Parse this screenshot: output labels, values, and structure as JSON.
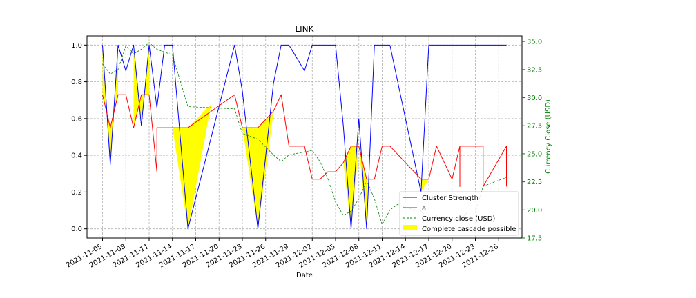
{
  "chart_data": {
    "type": "line",
    "title": "LINK",
    "xlabel": "Date",
    "ylabel": "",
    "y2label": "Currency Close (USD)",
    "ylim": [
      -0.05,
      1.05
    ],
    "y2lim": [
      17.5,
      35.5
    ],
    "xlim": [
      "2021-11-03",
      "2021-12-29"
    ],
    "x_ticks": [
      "2021-11-05",
      "2021-11-08",
      "2021-11-11",
      "2021-11-14",
      "2021-11-17",
      "2021-11-20",
      "2021-11-23",
      "2021-11-26",
      "2021-11-29",
      "2021-12-02",
      "2021-12-05",
      "2021-12-08",
      "2021-12-11",
      "2021-12-14",
      "2021-12-17",
      "2021-12-20",
      "2021-12-23",
      "2021-12-26"
    ],
    "y_ticks": [
      "0.0",
      "0.2",
      "0.4",
      "0.6",
      "0.8",
      "1.0"
    ],
    "y2_ticks": [
      "17.5",
      "20.0",
      "22.5",
      "25.0",
      "27.5",
      "30.0",
      "32.5",
      "35.0"
    ],
    "grid": true,
    "legend_position": "lower-right",
    "legend": [
      "Cluster Strength",
      "a",
      "Currency close (USD)",
      "Complete cascade possible"
    ],
    "colors": {
      "cluster": "#0000ff",
      "a": "#ff0000",
      "close": "#008000",
      "fill": "#ffff00",
      "right_axis": "#008000"
    },
    "series": [
      {
        "name": "Cluster Strength",
        "axis": "left",
        "style": "solid",
        "points": [
          [
            "2021-11-05",
            1.0
          ],
          [
            "2021-11-06",
            0.35
          ],
          [
            "2021-11-07",
            1.0
          ],
          [
            "2021-11-08",
            0.86
          ],
          [
            "2021-11-09",
            1.0
          ],
          [
            "2021-11-10",
            0.56
          ],
          [
            "2021-11-11",
            1.0
          ],
          [
            "2021-11-12",
            0.66
          ],
          [
            "2021-11-13",
            1.0
          ],
          [
            "2021-11-14",
            1.0
          ],
          [
            "2021-11-16",
            0.0
          ],
          [
            "2021-11-22",
            1.0
          ],
          [
            "2021-11-23",
            0.75
          ],
          [
            "2021-11-25",
            0.0
          ],
          [
            "2021-11-27",
            0.79
          ],
          [
            "2021-11-28",
            1.0
          ],
          [
            "2021-11-29",
            1.0
          ],
          [
            "2021-12-01",
            0.86
          ],
          [
            "2021-12-02",
            1.0
          ],
          [
            "2021-12-05",
            1.0
          ],
          [
            "2021-12-06",
            0.56
          ],
          [
            "2021-12-07",
            0.0
          ],
          [
            "2021-12-08",
            0.6
          ],
          [
            "2021-12-09",
            0.0
          ],
          [
            "2021-12-10",
            1.0
          ],
          [
            "2021-12-12",
            1.0
          ],
          [
            "2021-12-16",
            0.2
          ],
          [
            "2021-12-17",
            1.0
          ],
          [
            "2021-12-27",
            1.0
          ]
        ]
      },
      {
        "name": "a",
        "axis": "left",
        "style": "solid",
        "points": [
          [
            "2021-11-05",
            0.73
          ],
          [
            "2021-11-06",
            0.55
          ],
          [
            "2021-11-07",
            0.73
          ],
          [
            "2021-11-08",
            0.73
          ],
          [
            "2021-11-09",
            0.55
          ],
          [
            "2021-11-10",
            0.73
          ],
          [
            "2021-11-11",
            0.73
          ],
          [
            "2021-11-12",
            0.31
          ],
          [
            "2021-11-12",
            0.55
          ],
          [
            "2021-11-16",
            0.55
          ],
          [
            "2021-11-22",
            0.73
          ],
          [
            "2021-11-23",
            0.55
          ],
          [
            "2021-11-25",
            0.55
          ],
          [
            "2021-11-27",
            0.64
          ],
          [
            "2021-11-28",
            0.73
          ],
          [
            "2021-11-29",
            0.45
          ],
          [
            "2021-12-01",
            0.45
          ],
          [
            "2021-12-02",
            0.27
          ],
          [
            "2021-12-03",
            0.27
          ],
          [
            "2021-12-04",
            0.31
          ],
          [
            "2021-12-05",
            0.31
          ],
          [
            "2021-12-06",
            0.36
          ],
          [
            "2021-12-07",
            0.45
          ],
          [
            "2021-12-08",
            0.45
          ],
          [
            "2021-12-09",
            0.27
          ],
          [
            "2021-12-10",
            0.27
          ],
          [
            "2021-12-11",
            0.45
          ],
          [
            "2021-12-12",
            0.45
          ],
          [
            "2021-12-16",
            0.27
          ],
          [
            "2021-12-17",
            0.27
          ],
          [
            "2021-12-18",
            0.45
          ],
          [
            "2021-12-20",
            0.27
          ],
          [
            "2021-12-21",
            0.45
          ],
          [
            "2021-12-21",
            0.23
          ],
          [
            "2021-12-21",
            0.45
          ],
          [
            "2021-12-24",
            0.45
          ],
          [
            "2021-12-24",
            0.23
          ],
          [
            "2021-12-27",
            0.45
          ],
          [
            "2021-12-27",
            0.23
          ]
        ]
      },
      {
        "name": "Currency close (USD)",
        "axis": "right",
        "style": "dashed",
        "points": [
          [
            "2021-11-05",
            33.0
          ],
          [
            "2021-11-06",
            32.1
          ],
          [
            "2021-11-07",
            32.5
          ],
          [
            "2021-11-08",
            34.6
          ],
          [
            "2021-11-09",
            33.9
          ],
          [
            "2021-11-10",
            34.3
          ],
          [
            "2021-11-11",
            34.9
          ],
          [
            "2021-11-12",
            34.3
          ],
          [
            "2021-11-14",
            33.8
          ],
          [
            "2021-11-16",
            29.2
          ],
          [
            "2021-11-22",
            29.0
          ],
          [
            "2021-11-23",
            26.8
          ],
          [
            "2021-11-25",
            26.3
          ],
          [
            "2021-11-27",
            24.9
          ],
          [
            "2021-11-28",
            24.3
          ],
          [
            "2021-11-29",
            24.9
          ],
          [
            "2021-12-02",
            25.3
          ],
          [
            "2021-12-03",
            24.3
          ],
          [
            "2021-12-04",
            22.8
          ],
          [
            "2021-12-05",
            20.7
          ],
          [
            "2021-12-06",
            19.5
          ],
          [
            "2021-12-07",
            19.9
          ],
          [
            "2021-12-08",
            21.0
          ],
          [
            "2021-12-09",
            22.6
          ],
          [
            "2021-12-10",
            21.0
          ],
          [
            "2021-12-11",
            18.7
          ],
          [
            "2021-12-12",
            20.0
          ],
          [
            "2021-12-13",
            20.5
          ],
          [
            "2021-12-14",
            20.2
          ],
          [
            "2021-12-16",
            19.9
          ],
          [
            "2021-12-17",
            19.1
          ],
          [
            "2021-12-18",
            19.5
          ],
          [
            "2021-12-19",
            19.0
          ],
          [
            "2021-12-20",
            19.1
          ],
          [
            "2021-12-21",
            19.1
          ],
          [
            "2021-12-22",
            19.8
          ],
          [
            "2021-12-23",
            19.8
          ],
          [
            "2021-12-24",
            22.1
          ],
          [
            "2021-12-27",
            22.9
          ]
        ]
      }
    ],
    "fill_regions": [
      [
        [
          "2021-11-05",
          1.0,
          0.73
        ],
        [
          "2021-11-06",
          0.35,
          0.55
        ],
        [
          "2021-11-07",
          1.0,
          0.73
        ]
      ],
      [
        [
          "2021-11-09",
          1.0,
          0.55
        ],
        [
          "2021-11-10",
          0.56,
          0.73
        ],
        [
          "2021-11-11",
          1.0,
          0.73
        ]
      ],
      [
        [
          "2021-11-14",
          0.55,
          0.55
        ],
        [
          "2021-11-16",
          0.0,
          0.55
        ],
        [
          "2021-11-19",
          0.68,
          0.68
        ]
      ],
      [
        [
          "2021-11-23",
          0.55,
          0.55
        ],
        [
          "2021-11-25",
          0.0,
          0.55
        ],
        [
          "2021-11-27",
          0.63,
          0.63
        ]
      ],
      [
        [
          "2021-12-06",
          0.36,
          0.36
        ],
        [
          "2021-12-07",
          0.0,
          0.45
        ],
        [
          "2021-12-08",
          0.45,
          0.45
        ]
      ],
      [
        [
          "2021-12-08",
          0.45,
          0.45
        ],
        [
          "2021-12-09",
          0.0,
          0.27
        ],
        [
          "2021-12-09",
          0.27,
          0.27
        ]
      ],
      [
        [
          "2021-12-16",
          0.27,
          0.27
        ],
        [
          "2021-12-16",
          0.2,
          0.27
        ],
        [
          "2021-12-17",
          0.27,
          0.27
        ]
      ]
    ]
  }
}
